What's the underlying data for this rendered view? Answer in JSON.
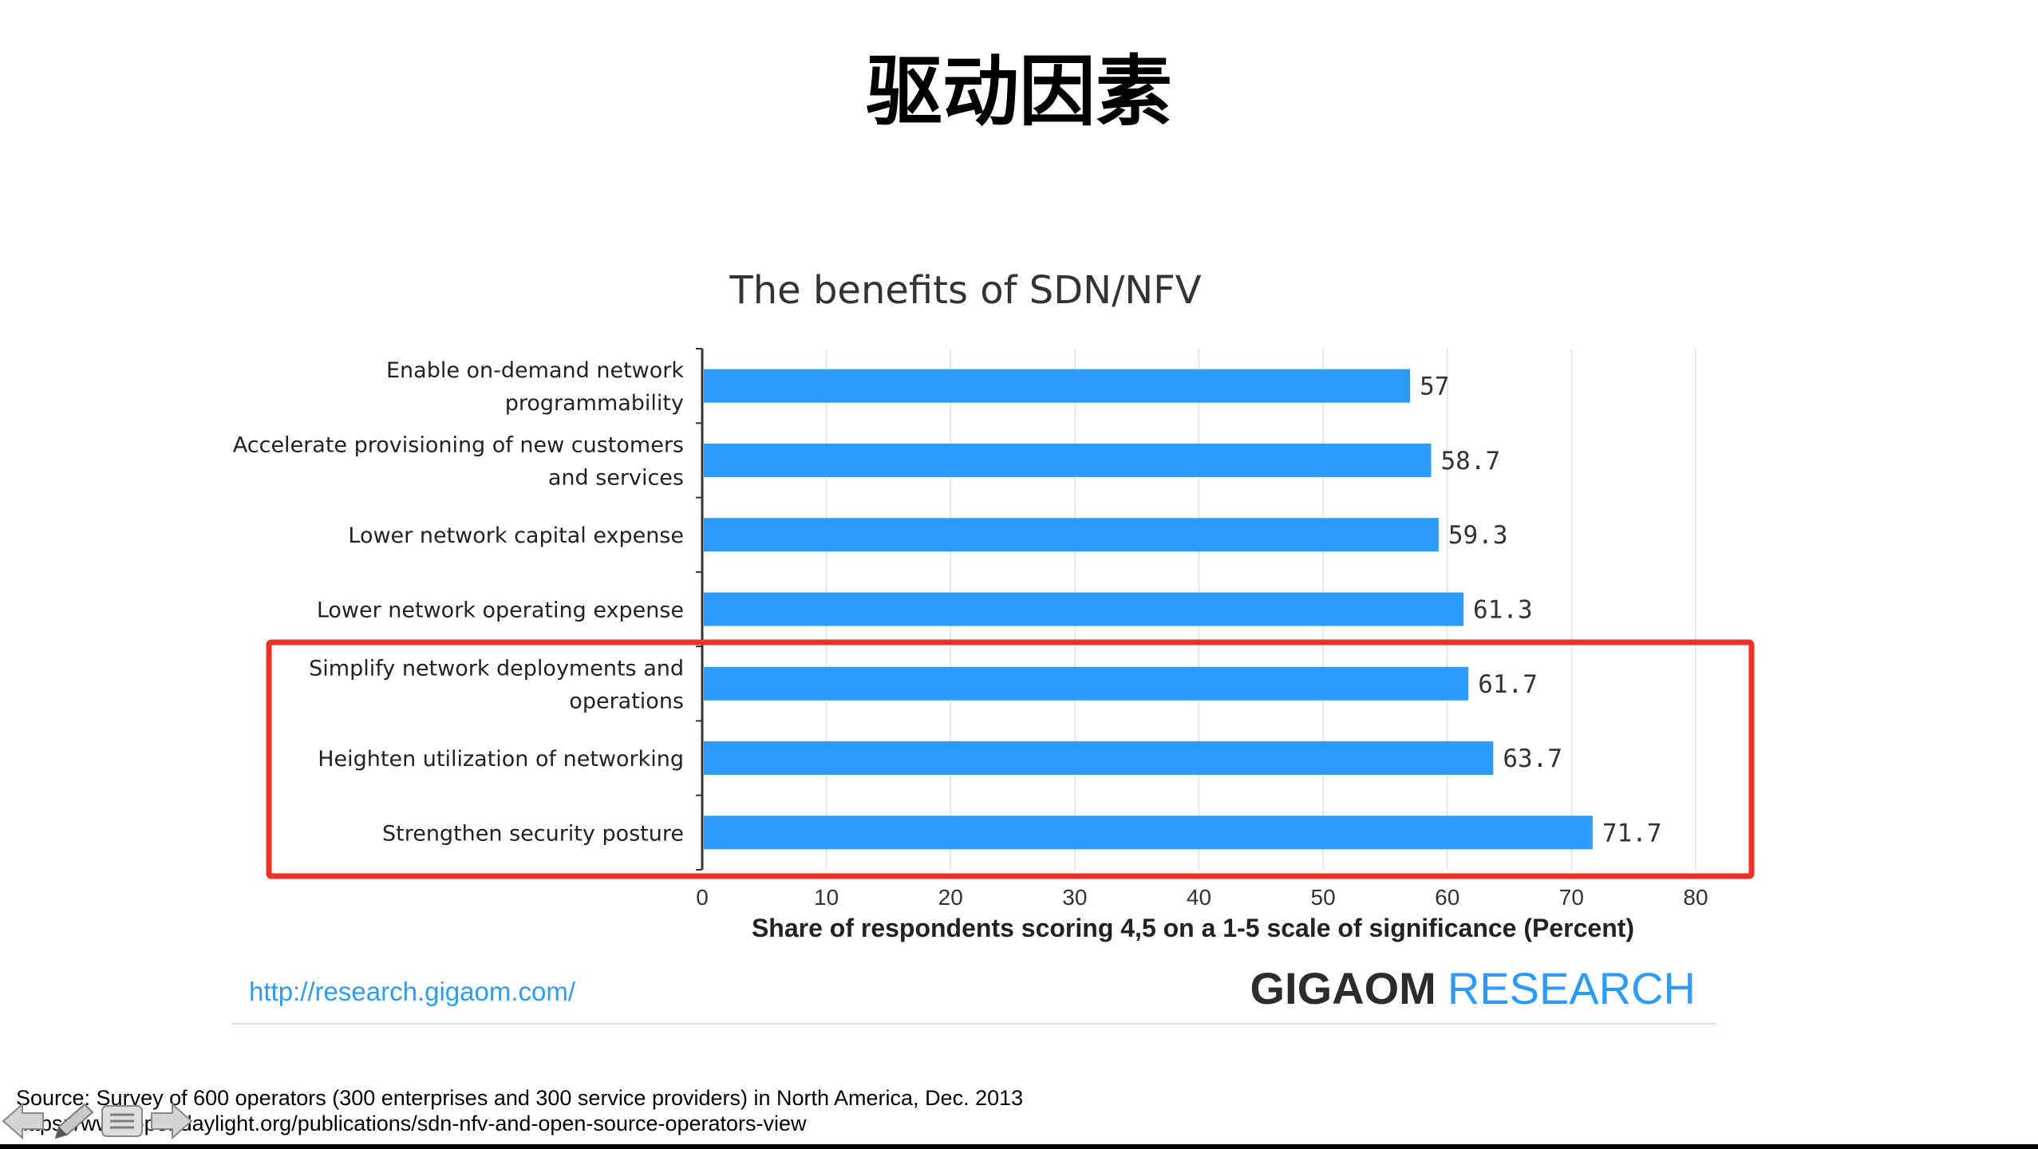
{
  "slide": {
    "title": "驱动因素",
    "source_line": "Source: Survey of 600 operators (300 enterprises and 300 service providers) in North America, Dec. 2013",
    "url_line": "https://www.opendaylight.org/publications/sdn-nfv-and-open-source-operators-view"
  },
  "chart_data": {
    "type": "bar",
    "orientation": "horizontal",
    "title": "The benefits of SDN/NFV",
    "categories": [
      [
        "Enable on-demand network",
        "programmability"
      ],
      [
        "Accelerate provisioning of new customers",
        "and services"
      ],
      [
        "Lower network capital expense"
      ],
      [
        "Lower network operating expense"
      ],
      [
        "Simplify network deployments and",
        "operations"
      ],
      [
        "Heighten utilization of networking"
      ],
      [
        "Strengthen security posture"
      ]
    ],
    "values": [
      57,
      58.7,
      59.3,
      61.3,
      61.7,
      63.7,
      71.7
    ],
    "data_labels": [
      "57",
      "58.7",
      "59.3",
      "61.3",
      "61.7",
      "63.7",
      "71.7"
    ],
    "xlabel": "Share of respondents scoring 4,5 on a 1-5 scale of significance (Percent)",
    "ylabel": "",
    "xlim": [
      0,
      80
    ],
    "xticks": [
      "0",
      "10",
      "20",
      "30",
      "40",
      "50",
      "60",
      "70",
      "80"
    ],
    "grid": true,
    "highlight": {
      "from_category_index": 4,
      "to_category_index": 6,
      "color": "#ee3124"
    },
    "bar_color": "#2b9cfb",
    "source_url": "http://research.gigaom.com/",
    "brand_bold": "GIGAOM",
    "brand_light": "RESEARCH",
    "brand_color_bold": "#2c2c2c",
    "brand_color_light": "#2b9cfb"
  },
  "nav": {
    "back_icon": "arrow-left-icon",
    "edit_icon": "pencil-icon",
    "menu_icon": "menu-icon",
    "forward_icon": "arrow-right-icon"
  }
}
